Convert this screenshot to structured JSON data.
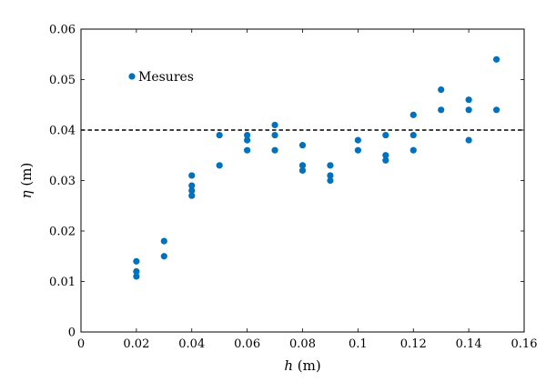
{
  "chart_data": {
    "type": "scatter",
    "xlabel": "h (m)",
    "ylabel": "η (m)",
    "xlim": [
      0,
      0.16
    ],
    "ylim": [
      0,
      0.06
    ],
    "xticks": [
      "0",
      "0.02",
      "0.04",
      "0.06",
      "0.08",
      "0.1",
      "0.12",
      "0.14",
      "0.16"
    ],
    "yticks": [
      "0",
      "0.01",
      "0.02",
      "0.03",
      "0.04",
      "0.05",
      "0.06"
    ],
    "grid": false,
    "legend_position": "upper-left",
    "reference_line": {
      "y": 0.04,
      "style": "dashed"
    },
    "series": [
      {
        "name": "Mesures",
        "color": "#0072BD",
        "points": [
          [
            0.02,
            0.014
          ],
          [
            0.02,
            0.012
          ],
          [
            0.02,
            0.011
          ],
          [
            0.03,
            0.018
          ],
          [
            0.03,
            0.015
          ],
          [
            0.04,
            0.031
          ],
          [
            0.04,
            0.029
          ],
          [
            0.04,
            0.028
          ],
          [
            0.04,
            0.027
          ],
          [
            0.05,
            0.039
          ],
          [
            0.05,
            0.033
          ],
          [
            0.06,
            0.039
          ],
          [
            0.06,
            0.038
          ],
          [
            0.06,
            0.036
          ],
          [
            0.07,
            0.041
          ],
          [
            0.07,
            0.039
          ],
          [
            0.07,
            0.036
          ],
          [
            0.08,
            0.037
          ],
          [
            0.08,
            0.033
          ],
          [
            0.08,
            0.032
          ],
          [
            0.09,
            0.033
          ],
          [
            0.09,
            0.031
          ],
          [
            0.09,
            0.03
          ],
          [
            0.1,
            0.038
          ],
          [
            0.1,
            0.036
          ],
          [
            0.11,
            0.039
          ],
          [
            0.11,
            0.035
          ],
          [
            0.11,
            0.034
          ],
          [
            0.12,
            0.043
          ],
          [
            0.12,
            0.039
          ],
          [
            0.12,
            0.036
          ],
          [
            0.13,
            0.048
          ],
          [
            0.13,
            0.044
          ],
          [
            0.14,
            0.046
          ],
          [
            0.14,
            0.044
          ],
          [
            0.14,
            0.038
          ],
          [
            0.15,
            0.054
          ],
          [
            0.15,
            0.044
          ]
        ]
      }
    ]
  }
}
